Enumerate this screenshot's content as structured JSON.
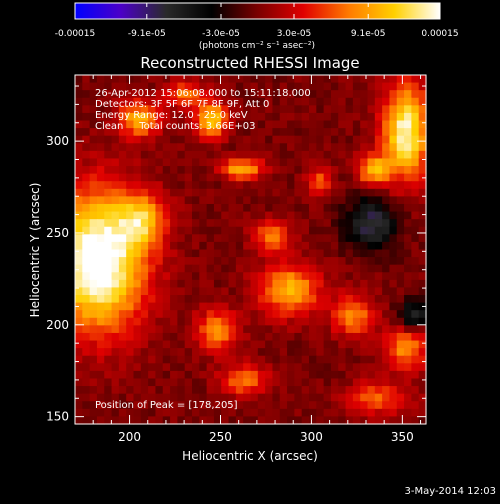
{
  "colorbar": {
    "tick_labels": [
      "-0.00015",
      "-9.1e-05",
      "-3.0e-05",
      "3.0e-05",
      "9.1e-05",
      "0.00015"
    ],
    "tick_values": [
      -0.00015,
      -9.1e-05,
      -3e-05,
      3e-05,
      9.1e-05,
      0.00015
    ],
    "range": [
      -0.00015,
      0.00015
    ],
    "units_label": "(photons cm⁻² s⁻¹ asec⁻²)",
    "colormap": [
      "#0000ff",
      "#4b00c8",
      "#2a2a2a",
      "#000000",
      "#7a0000",
      "#e00000",
      "#ff7a00",
      "#ffd000",
      "#ffffff"
    ]
  },
  "chart_data": {
    "type": "heatmap",
    "title": "Reconstructed RHESSI Image",
    "xlabel": "Heliocentric X (arcsec)",
    "ylabel": "Heliocentric Y (arcsec)",
    "xlim": [
      170,
      363
    ],
    "ylim": [
      146,
      336
    ],
    "x_ticks": [
      200,
      250,
      300,
      350
    ],
    "y_ticks": [
      150,
      200,
      250,
      300
    ],
    "annotations": [
      "26-Apr-2012 15:06:08.000 to 15:11:18.000",
      "Detectors: 3F 5F 6F 7F 8F 9F, Att 0",
      "Energy Range: 12.0 - 25.0 keV",
      "Clean     Total counts: 3.66E+03"
    ],
    "peak_label": "Position of Peak = [178,205]",
    "grid_cols": 48,
    "grid_rows": 46,
    "sources": [
      {
        "x": 183,
        "y": 235,
        "sx": 18,
        "sy": 26,
        "amp": 1.15
      },
      {
        "x": 207,
        "y": 257,
        "sx": 9,
        "sy": 10,
        "amp": 0.55
      },
      {
        "x": 205,
        "y": 312,
        "sx": 8,
        "sy": 7,
        "amp": 0.65
      },
      {
        "x": 245,
        "y": 312,
        "sx": 6,
        "sy": 7,
        "amp": 0.75
      },
      {
        "x": 262,
        "y": 285,
        "sx": 8,
        "sy": 4,
        "amp": 0.7
      },
      {
        "x": 352,
        "y": 305,
        "sx": 9,
        "sy": 18,
        "amp": 0.95
      },
      {
        "x": 334,
        "y": 284,
        "sx": 6,
        "sy": 6,
        "amp": 0.65
      },
      {
        "x": 304,
        "y": 278,
        "sx": 5,
        "sy": 5,
        "amp": 0.45
      },
      {
        "x": 288,
        "y": 219,
        "sx": 12,
        "sy": 10,
        "amp": 0.65
      },
      {
        "x": 323,
        "y": 205,
        "sx": 8,
        "sy": 8,
        "amp": 0.55
      },
      {
        "x": 352,
        "y": 187,
        "sx": 8,
        "sy": 9,
        "amp": 0.55
      },
      {
        "x": 278,
        "y": 248,
        "sx": 7,
        "sy": 6,
        "amp": 0.5
      },
      {
        "x": 248,
        "y": 197,
        "sx": 8,
        "sy": 8,
        "amp": 0.55
      },
      {
        "x": 263,
        "y": 170,
        "sx": 9,
        "sy": 6,
        "amp": 0.5
      },
      {
        "x": 336,
        "y": 160,
        "sx": 12,
        "sy": 6,
        "amp": 0.45
      },
      {
        "x": 230,
        "y": 325,
        "sx": 7,
        "sy": 5,
        "amp": 0.5
      },
      {
        "x": 333,
        "y": 255,
        "sx": 10,
        "sy": 10,
        "amp": -0.55
      },
      {
        "x": 356,
        "y": 205,
        "sx": 6,
        "sy": 6,
        "amp": -0.5
      }
    ]
  },
  "footer": {
    "date": "3-May-2014 12:03"
  }
}
